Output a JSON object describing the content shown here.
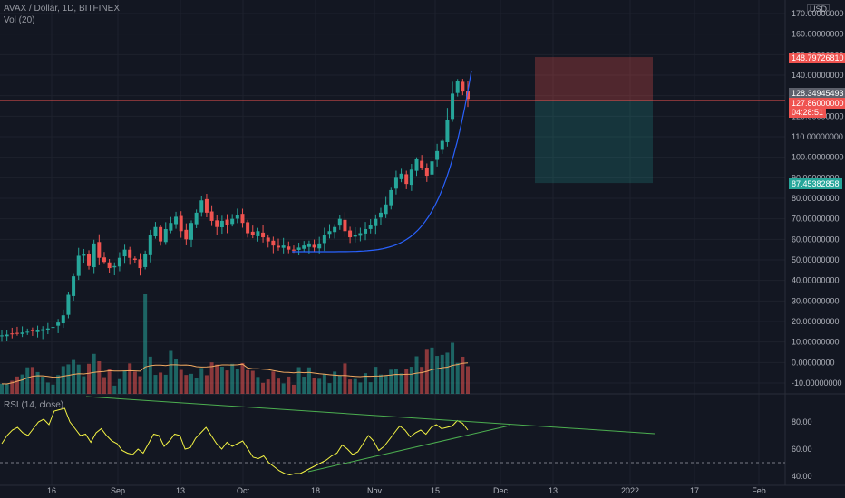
{
  "header": {
    "symbol": "AVAX / Dollar, 1D, BITFINEX",
    "volume": "Vol (20)",
    "rsi": "RSI (14, close)",
    "currency": "USD"
  },
  "colors": {
    "background": "#131722",
    "up": "#26a69a",
    "down": "#ef5350",
    "curve": "#2962ff",
    "rsi": "#f5f544",
    "trend": "#4caf50",
    "ma": "#f0a860"
  },
  "chart_data": [
    {
      "type": "candlestick",
      "title": "AVAX / Dollar, 1D, BITFINEX",
      "y_ticks": [
        "170.00000000",
        "160.00000000",
        "150.00000000",
        "140.00000000",
        "130.00000000",
        "120.00000000",
        "110.00000000",
        "100.00000000",
        "90.00000000",
        "80.00000000",
        "70.00000000",
        "60.00000000",
        "50.00000000",
        "40.00000000",
        "30.00000000",
        "20.00000000",
        "10.00000000",
        "0.00000000",
        "-10.00000000"
      ],
      "x_ticks": [
        "16",
        "Sep",
        "13",
        "Oct",
        "18",
        "Nov",
        "15",
        "Dec",
        "13",
        "2022",
        "17",
        "Feb"
      ],
      "ylim": [
        -15,
        172
      ],
      "price_labels": {
        "stop": "148.79726810",
        "last": "128.34945493",
        "entry": "127.86000000",
        "countdown": "04:28:51",
        "target": "87.45382858"
      },
      "position_tool": {
        "stop": 148.8,
        "entry": 127.86,
        "target": 87.45
      },
      "closes": [
        13.2,
        13.6,
        14.0,
        14.3,
        14.6,
        15.0,
        15.3,
        15.7,
        16.2,
        16.6,
        17.3,
        19.5,
        23.0,
        33.0,
        42.0,
        52.0,
        53.0,
        47.0,
        58.0,
        51.0,
        49.0,
        46.0,
        47.0,
        51.0,
        55.0,
        51.0,
        50.0,
        46.0,
        53.0,
        62.0,
        66.0,
        59.0,
        65.0,
        68.0,
        71.0,
        64.0,
        60.0,
        68.0,
        73.0,
        79.0,
        73.0,
        69.0,
        66.0,
        69.0,
        67.0,
        70.0,
        72.0,
        68.0,
        63.0,
        62.0,
        64.0,
        61.0,
        59.0,
        57.0,
        56.0,
        57.0,
        55.0,
        54.5,
        56.0,
        57.0,
        58.0,
        56.0,
        58.0,
        62.0,
        64.0,
        66.0,
        70.0,
        64.0,
        61.0,
        62.0,
        63.0,
        65.0,
        67.0,
        70.0,
        73.0,
        77.0,
        84.0,
        90.0,
        92.0,
        87.0,
        94.0,
        99.0,
        95.0,
        91.0,
        98.0,
        103.0,
        108.0,
        118.0,
        131.0,
        137.0,
        132.0,
        128.35
      ],
      "volume_ma": "20"
    },
    {
      "type": "line",
      "title": "RSI (14, close)",
      "y_ticks": [
        "80.00",
        "60.00",
        "40.00"
      ],
      "ylim": [
        38,
        92
      ],
      "values": [
        64,
        70,
        74,
        76,
        72,
        70,
        75,
        80,
        82,
        78,
        88,
        89,
        90,
        80,
        75,
        70,
        71,
        65,
        72,
        75,
        70,
        66,
        64,
        59,
        57,
        56,
        60,
        57,
        64,
        71,
        70,
        62,
        66,
        71,
        70,
        60,
        61,
        68,
        72,
        76,
        70,
        64,
        60,
        65,
        62,
        64,
        66,
        60,
        54,
        53,
        55,
        50,
        47,
        44,
        42,
        41,
        42,
        42,
        44,
        46,
        48,
        50,
        52,
        55,
        57,
        63,
        60,
        56,
        58,
        64,
        70,
        66,
        59,
        62,
        67,
        72,
        77,
        74,
        69,
        72,
        74,
        71,
        76,
        78,
        75,
        76,
        77,
        81,
        79,
        74
      ]
    }
  ]
}
